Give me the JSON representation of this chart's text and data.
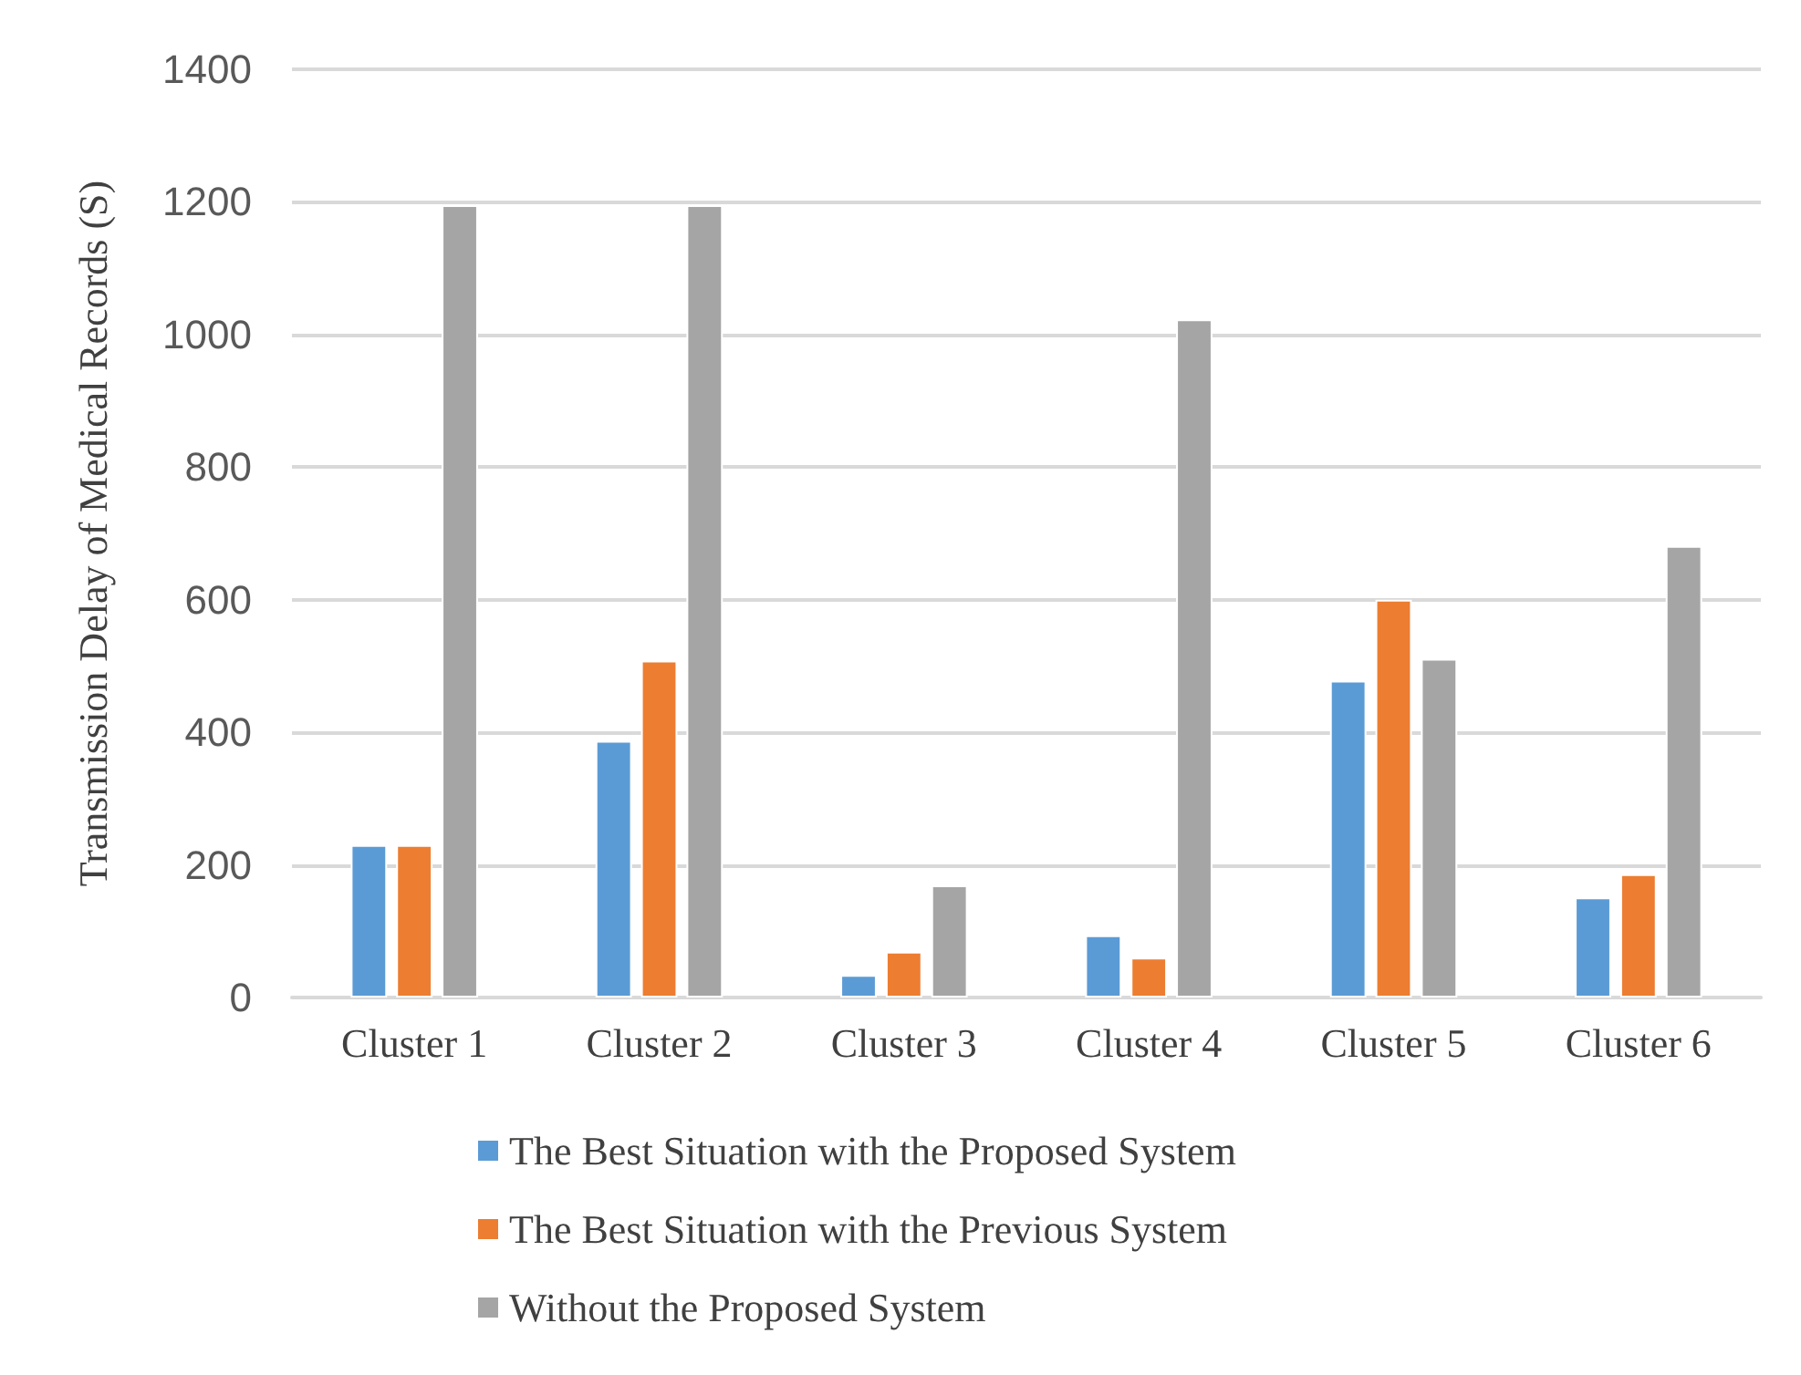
{
  "chart_data": {
    "type": "bar",
    "ylabel": "Transmission Delay of Medical Records (S)",
    "categories": [
      "Cluster 1",
      "Cluster 2",
      "Cluster 3",
      "Cluster 4",
      "Cluster 5",
      "Cluster 6"
    ],
    "series": [
      {
        "name": "The Best Situation with the Proposed System",
        "color": "#5b9bd5",
        "values": [
          230,
          387,
          34,
          94,
          478,
          151
        ]
      },
      {
        "name": "The Best Situation with the Previous System",
        "color": "#ed7d31",
        "values": [
          230,
          508,
          69,
          60,
          600,
          186
        ]
      },
      {
        "name": "Without the Proposed System",
        "color": "#a5a5a5",
        "values": [
          1195,
          1195,
          169,
          1023,
          511,
          681
        ]
      }
    ],
    "ylim": [
      0,
      1400
    ],
    "yticks": [
      0,
      200,
      400,
      600,
      800,
      1000,
      1200,
      1400
    ],
    "grid": "y",
    "legend": "bottom"
  }
}
